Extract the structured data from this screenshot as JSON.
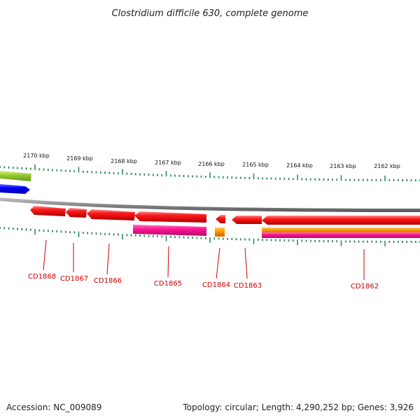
{
  "title": "Clostridium difficile 630, complete genome",
  "footer": {
    "accession": "Accession: NC_009089",
    "summary": "Topology: circular; Length: 4,290,252 bp; Genes: 3,926"
  },
  "ruler_labels": [
    "2170 kbp",
    "2169 kbp",
    "2168 kbp",
    "2167 kbp",
    "2166 kbp",
    "2165 kbp",
    "2164 kbp",
    "2163 kbp",
    "2162 kbp"
  ],
  "gene_labels": [
    "CD1868",
    "CD1867",
    "CD1866",
    "CD1865",
    "CD1864",
    "CD1863",
    "CD1862"
  ],
  "colors": {
    "cds": "#ff0000",
    "rna": "#ff1493",
    "orange": "#ff9900",
    "green": "#99cc33",
    "blue": "#0000ff",
    "ticks": "#2e8b57",
    "backbone": "#808080",
    "label": "#cc0000"
  }
}
